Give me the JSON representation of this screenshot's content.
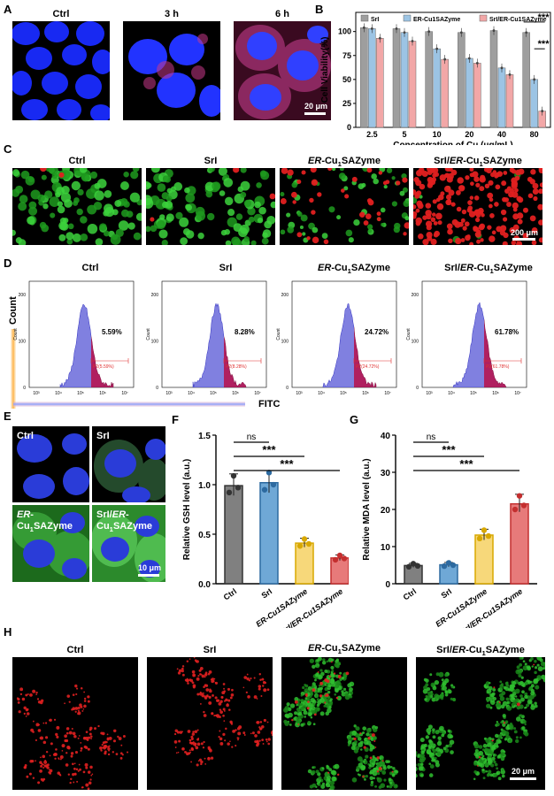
{
  "panel_letters": {
    "A": "A",
    "B": "B",
    "C": "C",
    "D": "D",
    "E": "E",
    "F": "F",
    "G": "G",
    "H": "H"
  },
  "panelA": {
    "labels": [
      "Ctrl",
      "3 h",
      "6 h"
    ],
    "scale": "20 μm"
  },
  "panelC": {
    "labels": [
      "Ctrl",
      "SrI",
      "ER-Cu1SAZyme",
      "SrI/ER-Cu1SAZyme"
    ],
    "scale": "200 μm"
  },
  "panelE": {
    "labels": [
      "Ctrl",
      "SrI",
      "ER-Cu1SAZyme",
      "SrI/ER-Cu1SAZyme"
    ],
    "scale": "10 μm"
  },
  "panelH": {
    "labels": [
      "Ctrl",
      "SrI",
      "ER-Cu1SAZyme",
      "SrI/ER-Cu1SAZyme"
    ],
    "scale": "20 μm"
  },
  "panelD": {
    "labels": [
      "Ctrl",
      "SrI",
      "ER-Cu1SAZyme",
      "SrI/ER-Cu1SAZyme"
    ],
    "percents": [
      "5.59%",
      "8.28%",
      "24.72%",
      "61.78%"
    ],
    "gates": [
      "P2(5.59%)",
      "P2(8.28%)",
      "P2(24.72%)",
      "P2(61.78%)"
    ],
    "ylabel": "Count",
    "xlabel": "FITC",
    "yticks": [
      "0",
      "100",
      "200"
    ],
    "xticks": [
      "10³",
      "10⁴",
      "10⁵",
      "10⁶",
      "10⁷"
    ]
  },
  "chart_data": [
    {
      "id": "B",
      "type": "bar",
      "ylabel": "Cell Viability(%)",
      "xlabel": "Concentration of Cu (μg/mL)",
      "categories": [
        "2.5",
        "5",
        "10",
        "20",
        "40",
        "80"
      ],
      "ylim": [
        0,
        120
      ],
      "yticks": [
        0,
        25,
        50,
        75,
        100
      ],
      "series": [
        {
          "name": "SrI",
          "values": [
            104,
            103,
            100,
            99,
            101,
            99
          ],
          "color": "#9e9e9e"
        },
        {
          "name": "ER-Cu1SAZyme",
          "values": [
            103,
            99,
            82,
            72,
            62,
            50
          ],
          "color": "#9cc4e4"
        },
        {
          "name": "SrI/ER-Cu1SAZyme",
          "values": [
            93,
            90,
            71,
            67,
            55,
            17
          ],
          "color": "#f2a7a7"
        }
      ],
      "annotations": [
        "***",
        "***"
      ]
    },
    {
      "id": "F",
      "type": "bar",
      "ylabel": "Relative GSH level (a.u.)",
      "categories": [
        "Ctrl",
        "SrI",
        "ER-Cu1SAZyme",
        "SrI/ER-Cu1SAZyme"
      ],
      "values": [
        0.99,
        1.02,
        0.41,
        0.26
      ],
      "ylim": [
        0,
        1.5
      ],
      "yticks": [
        0,
        0.5,
        1.0,
        1.5
      ],
      "ytick_labels": [
        "0.0",
        "0.5",
        "1.0",
        "1.5"
      ],
      "colors": [
        "#808080",
        "#6fa8d6",
        "#f7d87a",
        "#e77a7a"
      ],
      "edges": [
        "#333333",
        "#2d6aa0",
        "#d8a800",
        "#c42f2f"
      ],
      "significance": [
        "ns",
        "***",
        "***"
      ]
    },
    {
      "id": "G",
      "type": "bar",
      "ylabel": "Relative MDA level (a.u.)",
      "categories": [
        "Ctrl",
        "SrI",
        "ER-Cu1SAZyme",
        "SrI/ER-Cu1SAZyme"
      ],
      "values": [
        4.9,
        5.1,
        13.1,
        21.5
      ],
      "ylim": [
        0,
        40
      ],
      "yticks": [
        0,
        10,
        20,
        30,
        40
      ],
      "ytick_labels": [
        "0",
        "10",
        "20",
        "30",
        "40"
      ],
      "colors": [
        "#808080",
        "#6fa8d6",
        "#f7d87a",
        "#e77a7a"
      ],
      "edges": [
        "#333333",
        "#2d6aa0",
        "#d8a800",
        "#c42f2f"
      ],
      "significance": [
        "ns",
        "***",
        "***"
      ]
    }
  ]
}
